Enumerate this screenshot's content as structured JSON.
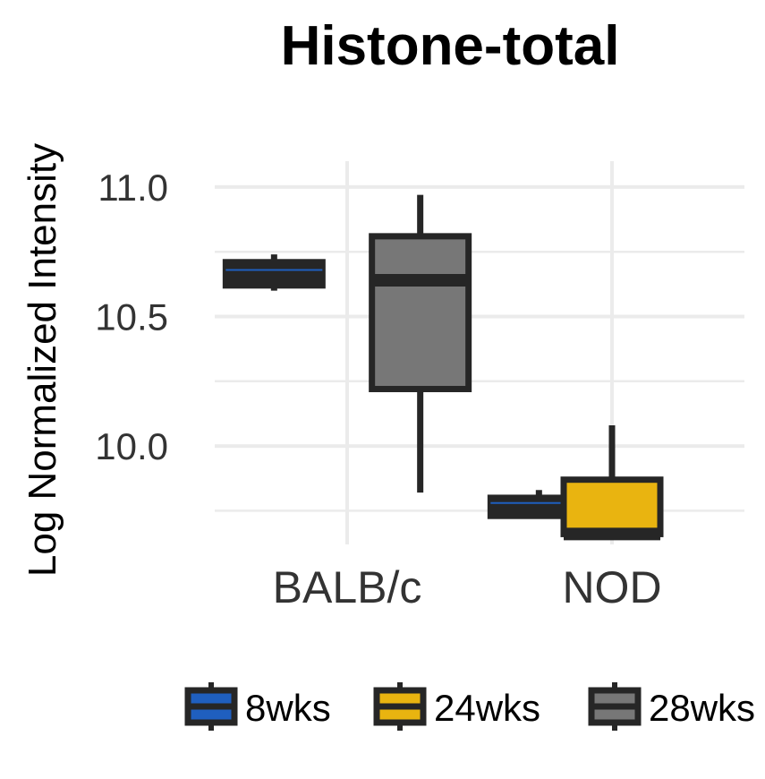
{
  "chart_data": {
    "type": "box",
    "title": "Histone-total",
    "xlabel": "",
    "ylabel": "Log Normalized Intensity",
    "categories": [
      "BALB/c",
      "NOD"
    ],
    "y_ticks": [
      "10.0",
      "10.5",
      "11.0"
    ],
    "ylim": [
      9.62,
      11.1
    ],
    "grid": true,
    "legend_position": "bottom",
    "series": [
      {
        "name": "8wks",
        "color": "#1f5fbf",
        "boxes": [
          {
            "category": "BALB/c",
            "whisker_low": 10.6,
            "q1": 10.62,
            "median": 10.68,
            "q3": 10.71,
            "whisker_high": 10.74
          },
          {
            "category": "NOD",
            "whisker_low": 9.73,
            "q1": 9.73,
            "median": 9.78,
            "q3": 9.8,
            "whisker_high": 9.83
          }
        ]
      },
      {
        "name": "24wks",
        "color": "#e9b410",
        "boxes": [
          {
            "category": "NOD",
            "whisker_low": 9.66,
            "q1": 9.66,
            "median": 9.66,
            "q3": 9.87,
            "whisker_high": 10.08
          }
        ]
      },
      {
        "name": "28wks",
        "color": "#777777",
        "boxes": [
          {
            "category": "BALB/c",
            "whisker_low": 9.82,
            "q1": 10.22,
            "median": 10.64,
            "q3": 10.81,
            "whisker_high": 10.97
          }
        ]
      }
    ]
  }
}
